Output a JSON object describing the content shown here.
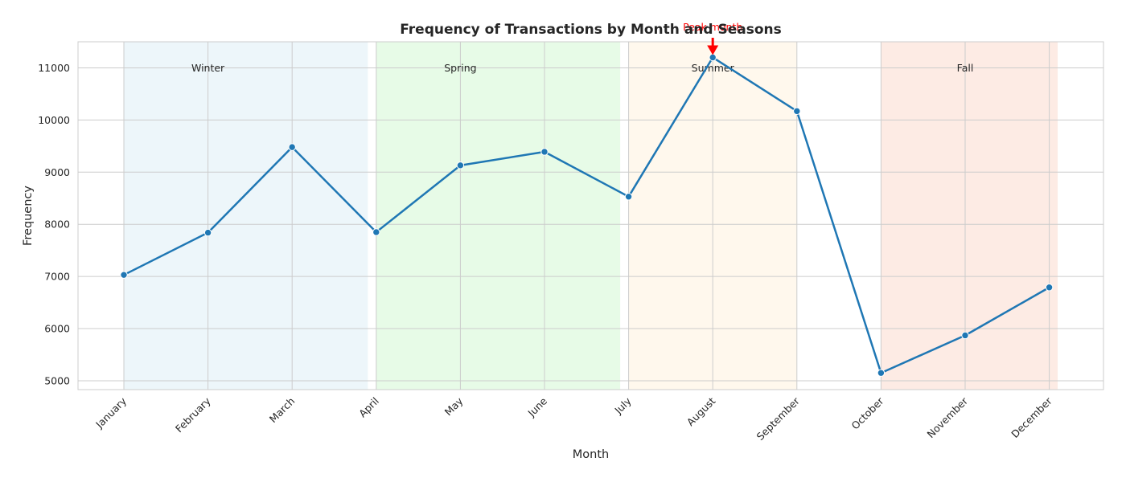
{
  "chart_data": {
    "type": "line",
    "title": "Frequency of Transactions by Month and Seasons",
    "xlabel": "Month",
    "ylabel": "Frequency",
    "categories": [
      "January",
      "February",
      "March",
      "April",
      "May",
      "June",
      "July",
      "August",
      "September",
      "October",
      "November",
      "December"
    ],
    "series": [
      {
        "values": [
          7030,
          7840,
          9480,
          7850,
          9130,
          9390,
          8530,
          11200,
          10170,
          5150,
          5870,
          6790
        ],
        "color": "#1f77b4"
      }
    ],
    "ylim": [
      4830,
      11500
    ],
    "yticks": [
      5000,
      6000,
      7000,
      8000,
      9000,
      10000,
      11000
    ],
    "grid": true,
    "seasons": [
      {
        "name": "Winter",
        "start": "January",
        "end": "March",
        "color": "#add8e6"
      },
      {
        "name": "Spring",
        "start": "April",
        "end": "June",
        "color": "#90ee90"
      },
      {
        "name": "Summer",
        "start": "July",
        "end": "September",
        "color": "#ffdead"
      },
      {
        "name": "Fall",
        "start": "October",
        "end": "December",
        "color": "#f4a582"
      }
    ],
    "annotation": {
      "text": "Peak month",
      "month": "August",
      "value": 11200,
      "color": "#ff0000"
    }
  }
}
